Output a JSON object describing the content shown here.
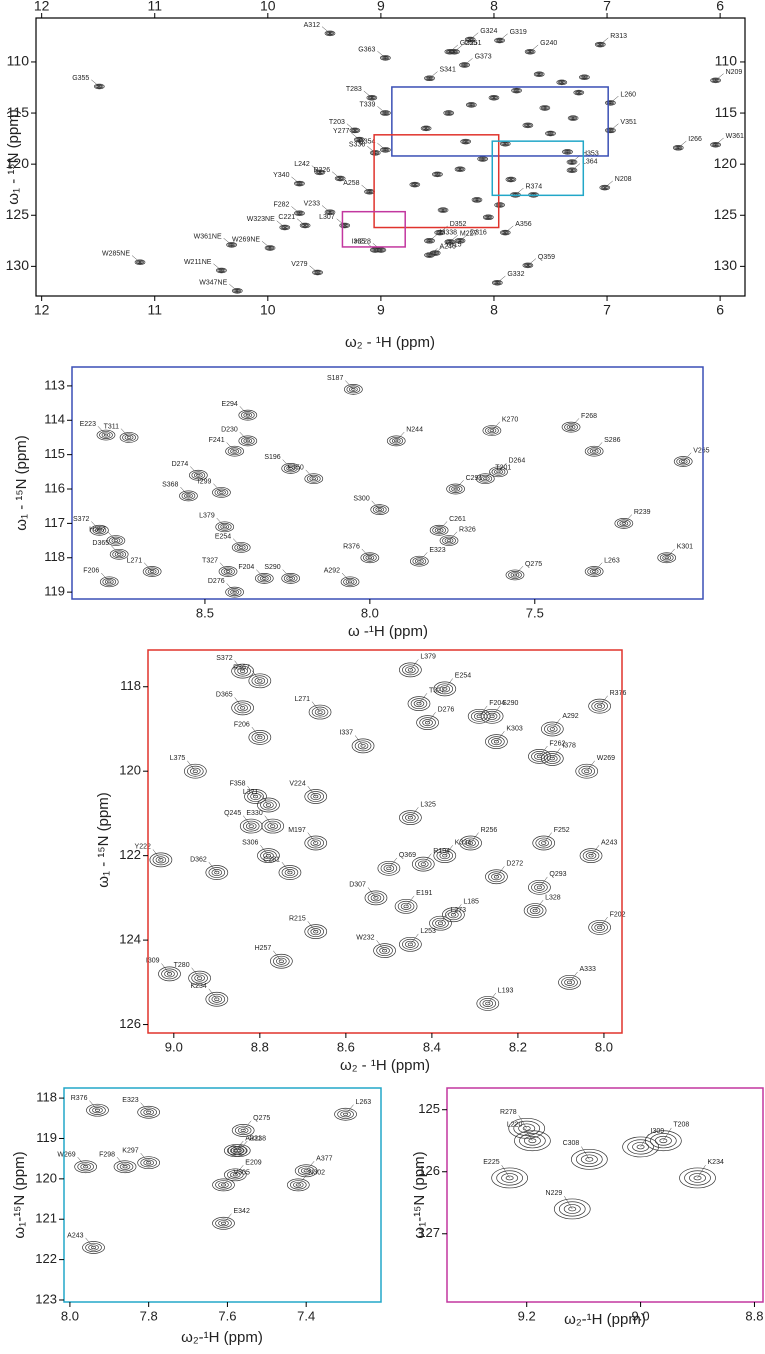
{
  "chart_data": [
    {
      "type": "scatter",
      "xlabel": "ω₂ - ¹H (ppm)",
      "ylabel": "ω₁ - ¹⁵N (ppm)",
      "border_color": "#000000",
      "color": "#333333",
      "xlim": [
        12.05,
        5.78
      ],
      "ylim": [
        105.7,
        132.9
      ],
      "xticks": [
        12,
        11,
        10,
        9,
        8,
        7,
        6
      ],
      "yticks": [
        110,
        115,
        120,
        125,
        130
      ],
      "labels": [
        "G355",
        "A312",
        "G324",
        "G251",
        "G255",
        "G319",
        "R313",
        "G240",
        "G363",
        "G373",
        "S341",
        "T283",
        "N209",
        "L260",
        "T339",
        "T203",
        "Y277",
        "V351",
        "I266",
        "W361",
        "S336",
        "Q354",
        "L242",
        "R226",
        "Y340",
        "H353",
        "L364",
        "N208",
        "A258",
        "R374",
        "F282",
        "V233",
        "W323NE",
        "C221",
        "L307",
        "A356",
        "W361NE",
        "W269NE",
        "D352",
        "D316",
        "M338",
        "H228",
        "M227",
        "A246",
        "W285NE",
        "W211NE",
        "V279",
        "Y315",
        "I335",
        "Q359",
        "G332",
        "W347NE",
        null,
        null,
        null,
        null,
        null,
        null,
        null,
        null,
        null,
        null,
        null,
        null,
        null,
        null,
        null,
        null,
        null,
        null,
        null,
        null,
        null,
        null,
        null,
        null,
        null,
        null
      ],
      "x": [
        11.49,
        9.45,
        8.21,
        8.35,
        8.39,
        7.95,
        7.06,
        7.68,
        8.96,
        8.26,
        8.57,
        9.08,
        6.04,
        6.97,
        8.96,
        9.23,
        9.19,
        6.97,
        6.37,
        6.04,
        9.05,
        8.96,
        9.54,
        9.36,
        9.72,
        7.31,
        7.31,
        7.02,
        9.1,
        7.81,
        9.72,
        9.45,
        9.85,
        9.67,
        9.32,
        7.9,
        10.32,
        9.98,
        8.48,
        8.3,
        8.57,
        9.0,
        8.39,
        8.57,
        11.13,
        10.41,
        9.56,
        8.52,
        9.05,
        7.7,
        7.97,
        10.27,
        7.2,
        7.4,
        7.6,
        7.8,
        8.0,
        8.2,
        8.4,
        8.6,
        7.3,
        7.5,
        7.7,
        7.9,
        8.1,
        8.3,
        8.5,
        8.7,
        7.25,
        7.55,
        7.85,
        8.15,
        8.45,
        8.05,
        7.65,
        7.35,
        8.25,
        7.95
      ],
      "y": [
        112.4,
        107.2,
        107.8,
        109.0,
        109.0,
        107.9,
        108.3,
        109.0,
        109.6,
        110.3,
        111.6,
        113.5,
        111.8,
        114.0,
        115.0,
        116.7,
        117.6,
        116.7,
        118.4,
        118.1,
        118.9,
        118.6,
        120.8,
        121.4,
        121.9,
        119.8,
        120.6,
        122.3,
        122.7,
        123.0,
        124.8,
        124.7,
        126.2,
        126.0,
        126.0,
        126.7,
        127.9,
        128.2,
        126.7,
        127.5,
        127.5,
        128.4,
        127.6,
        128.9,
        129.6,
        130.4,
        130.6,
        128.7,
        128.4,
        129.9,
        131.6,
        132.4,
        111.5,
        112.0,
        111.2,
        112.8,
        113.5,
        114.2,
        115.0,
        116.5,
        115.5,
        117.0,
        116.2,
        118.0,
        119.5,
        120.5,
        121.0,
        122.0,
        113.0,
        114.5,
        121.5,
        123.5,
        124.5,
        125.2,
        123.0,
        118.8,
        117.8,
        124.0
      ]
    },
    {
      "type": "scatter",
      "xlabel": "ω  -¹H (ppm)",
      "ylabel": "ω₁ - ¹⁵N (ppm)",
      "border_color": "#3a4fb5",
      "color": "#333333",
      "xlim": [
        8.903,
        6.99
      ],
      "ylim": [
        112.45,
        119.2
      ],
      "xticks": [
        8.5,
        {
          "value": 8,
          "label": "8.0"
        },
        7.5
      ],
      "yticks": [
        113,
        114,
        115,
        116,
        117,
        118,
        119
      ],
      "labels": [
        "E223",
        "T311",
        "E294",
        "F241",
        "D230",
        "D274",
        "S196",
        "F350",
        "S187",
        "N244",
        "K270",
        "F268",
        "V265",
        "D264",
        "S286",
        "C291",
        "T201",
        "S368",
        "I299",
        "S372",
        "H367",
        "S300",
        "C261",
        "R239",
        "K301",
        "L379",
        "D365",
        "E254",
        "R326",
        "R376",
        "L271",
        "T327",
        "F204",
        "S290",
        "A292",
        "E323",
        "Q275",
        "L263",
        "F206",
        "D276"
      ],
      "x": [
        8.8,
        8.73,
        8.37,
        8.41,
        8.37,
        8.52,
        8.24,
        8.17,
        8.05,
        7.92,
        7.63,
        7.39,
        7.05,
        7.61,
        7.32,
        7.74,
        7.65,
        8.55,
        8.45,
        8.82,
        8.77,
        7.97,
        7.79,
        7.23,
        7.1,
        8.44,
        8.76,
        8.39,
        7.76,
        8.0,
        8.66,
        8.43,
        8.32,
        8.24,
        8.06,
        7.85,
        7.56,
        7.32,
        8.79,
        8.41
      ],
      "y": [
        114.43,
        114.5,
        113.85,
        114.9,
        114.6,
        115.6,
        115.4,
        115.7,
        113.1,
        114.6,
        114.3,
        114.2,
        115.2,
        115.5,
        114.9,
        116.0,
        115.7,
        116.2,
        116.1,
        117.2,
        117.5,
        116.6,
        117.2,
        117.0,
        118.0,
        117.1,
        117.9,
        117.7,
        117.5,
        118.0,
        118.4,
        118.4,
        118.6,
        118.6,
        118.7,
        118.1,
        118.5,
        118.4,
        118.7,
        119.0
      ]
    },
    {
      "type": "scatter",
      "xlabel": "ω₂ - ¹H (ppm)",
      "ylabel": "ω₁ - ¹⁵N (ppm)",
      "border_color": "#e0332c",
      "color": "#333333",
      "xlim": [
        9.06,
        7.958
      ],
      "ylim": [
        117.13,
        126.2
      ],
      "xticks": [
        {
          "value": 9,
          "label": "9.0"
        },
        8.8,
        8.6,
        8.4,
        8.2,
        {
          "value": 8,
          "label": "8.0"
        }
      ],
      "yticks": [
        118,
        120,
        122,
        124,
        126
      ],
      "labels": [
        "S372",
        "R367",
        "L379",
        "E254",
        "R376",
        "D365",
        "L271",
        "T327",
        "F204",
        "S290",
        "A292",
        "F206",
        "D276",
        "I337",
        "L375",
        "K303",
        "F262",
        "I378",
        "W269",
        "F358",
        "L371",
        "V224",
        "L325",
        "R256",
        "F252",
        "A243",
        "Q245",
        "E330",
        "M197",
        "Y222",
        "S306",
        "K334",
        "Q369",
        "R194",
        "D272",
        "D362",
        "C281",
        "Q293",
        "D307",
        "E191",
        "L185",
        "L273",
        "F202",
        "L328",
        "R215",
        "L253",
        "W232",
        "I309",
        "T280",
        "H257",
        "A333",
        "K234",
        "L193"
      ],
      "x": [
        8.84,
        8.8,
        8.45,
        8.37,
        8.01,
        8.84,
        8.66,
        8.43,
        8.29,
        8.26,
        8.12,
        8.8,
        8.41,
        8.56,
        8.95,
        8.25,
        8.15,
        8.12,
        8.04,
        8.81,
        8.78,
        8.67,
        8.45,
        8.31,
        8.14,
        8.03,
        8.82,
        8.77,
        8.67,
        9.03,
        8.78,
        8.37,
        8.5,
        8.42,
        8.25,
        8.9,
        8.73,
        8.15,
        8.53,
        8.46,
        8.35,
        8.38,
        8.01,
        8.16,
        8.67,
        8.45,
        8.51,
        9.01,
        8.94,
        8.75,
        8.08,
        8.9,
        8.27
      ],
      "y": [
        117.63,
        117.86,
        117.6,
        118.05,
        118.46,
        118.5,
        118.6,
        118.4,
        118.7,
        118.7,
        119.0,
        119.2,
        118.85,
        119.4,
        120.0,
        119.3,
        119.65,
        119.7,
        120.0,
        120.6,
        120.8,
        120.6,
        121.1,
        121.7,
        121.7,
        122.0,
        121.3,
        121.3,
        121.7,
        122.1,
        122.0,
        122.0,
        122.3,
        122.2,
        122.5,
        122.4,
        122.4,
        122.75,
        123.0,
        123.2,
        123.4,
        123.6,
        123.7,
        123.3,
        123.8,
        124.1,
        124.25,
        124.8,
        124.9,
        124.5,
        125.0,
        125.4,
        125.5
      ]
    },
    {
      "type": "scatter",
      "xlabel": "ω₂-¹H (ppm)",
      "ylabel": "ω₁-¹⁵N (ppm)",
      "border_color": "#22a7c8",
      "color": "#333333",
      "xlim": [
        8.015,
        7.21
      ],
      "ylim": [
        117.75,
        123.05
      ],
      "xticks": [
        {
          "value": 8,
          "label": "8.0"
        },
        7.8,
        7.6,
        7.4
      ],
      "yticks": [
        118,
        119,
        120,
        121,
        122,
        123
      ],
      "labels": [
        "R376",
        "E323",
        "Q275",
        "L263",
        "A331",
        "R238",
        "A377",
        "W269",
        "F298",
        "K297",
        "E209",
        "V305",
        "N302",
        "E342",
        "A243"
      ],
      "x": [
        7.93,
        7.8,
        7.56,
        7.3,
        7.58,
        7.57,
        7.4,
        7.96,
        7.86,
        7.8,
        7.58,
        7.61,
        7.42,
        7.61,
        7.94
      ],
      "y": [
        118.3,
        118.35,
        118.8,
        118.4,
        119.3,
        119.3,
        119.8,
        119.7,
        119.7,
        119.6,
        119.9,
        120.15,
        120.15,
        121.1,
        121.7
      ]
    },
    {
      "type": "scatter",
      "xlabel": "ω₂-¹H (ppm)",
      "ylabel": "ω₁-¹⁵N (ppm)",
      "border_color": "#c2379f",
      "color": "#333333",
      "xlim": [
        9.34,
        8.785
      ],
      "ylim": [
        124.65,
        128.1
      ],
      "xticks": [
        9.2,
        {
          "value": 9,
          "label": "9.0"
        },
        8.8
      ],
      "yticks": [
        125,
        126,
        127
      ],
      "labels": [
        "R278",
        "L220",
        "I309",
        "T208",
        "C308",
        "E225",
        "N229",
        "K234"
      ],
      "x": [
        9.2,
        9.19,
        9.0,
        8.96,
        9.09,
        9.23,
        9.12,
        8.9
      ],
      "y": [
        125.3,
        125.5,
        125.6,
        125.5,
        125.8,
        126.1,
        126.6,
        126.1
      ]
    }
  ]
}
